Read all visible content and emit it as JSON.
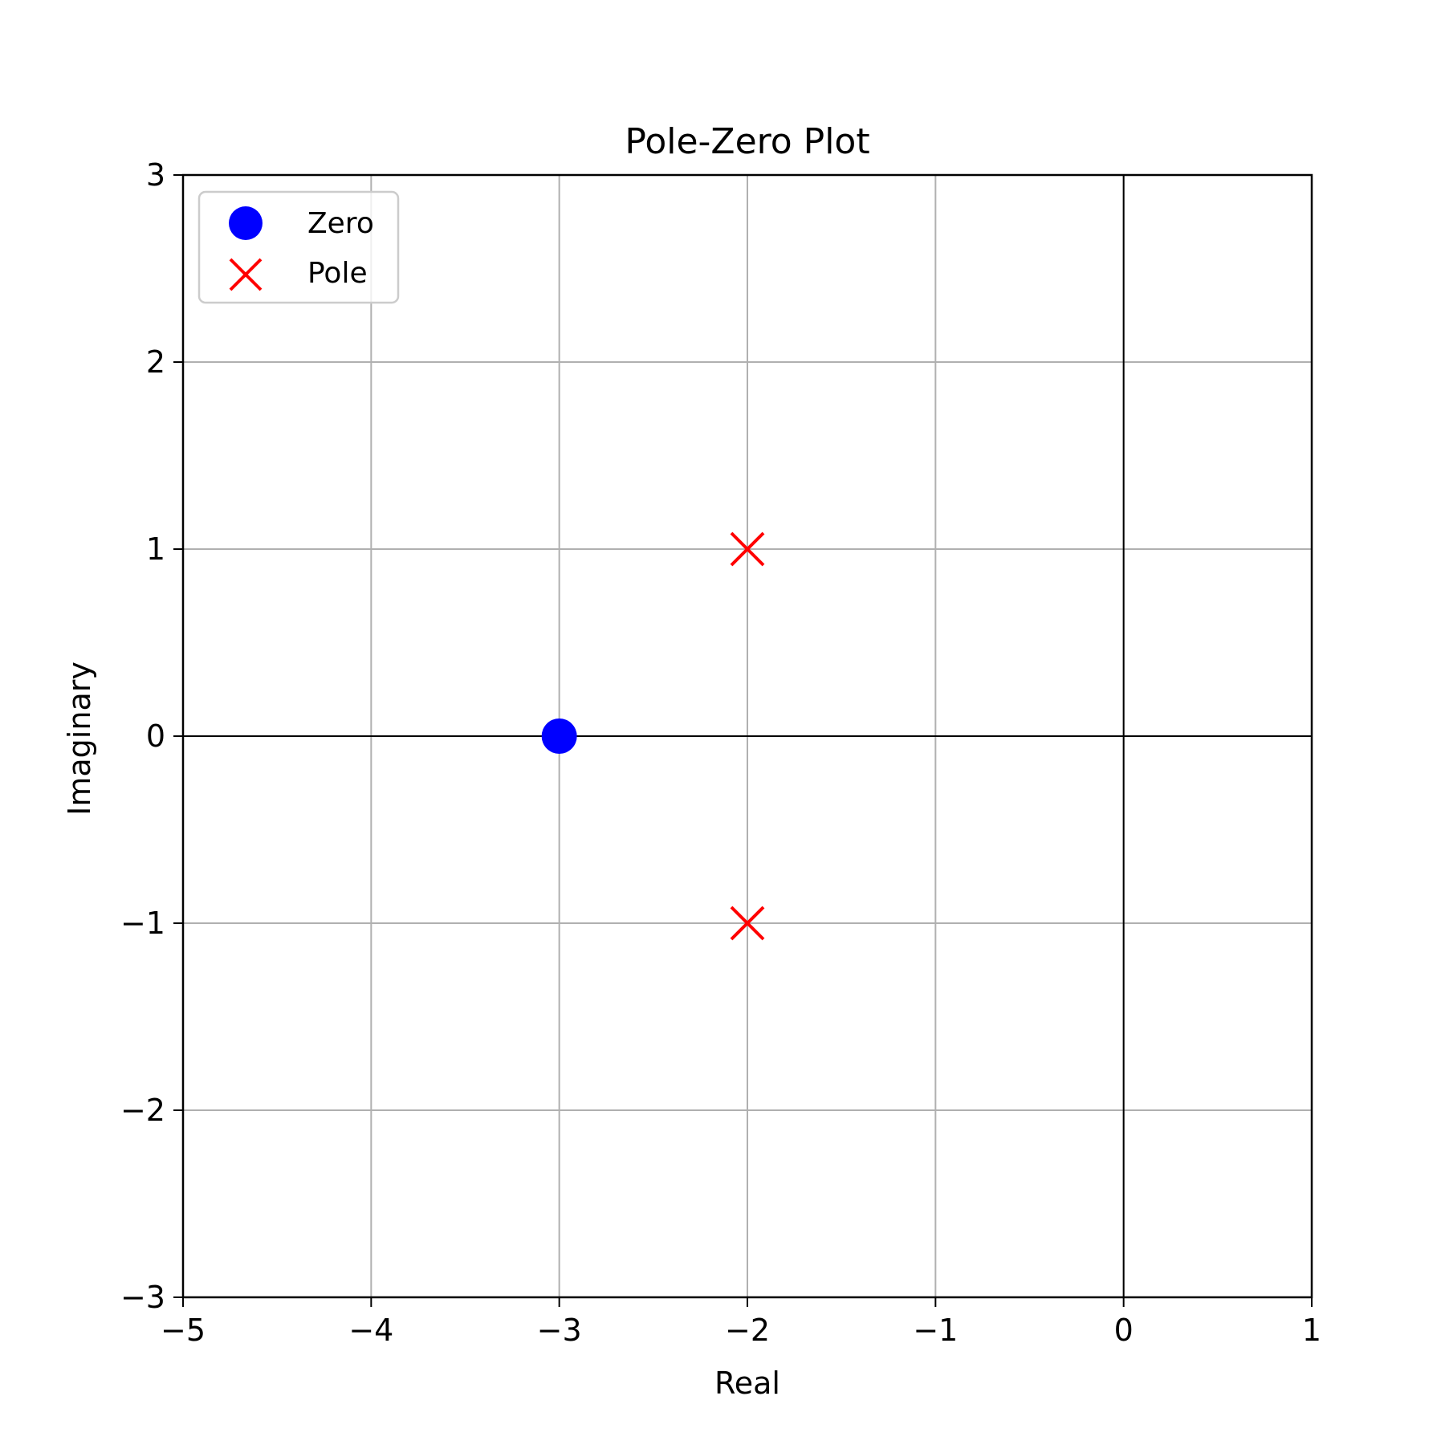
{
  "chart_data": {
    "type": "scatter",
    "title": "Pole-Zero Plot",
    "xlabel": "Real",
    "ylabel": "Imaginary",
    "xlim": [
      -5,
      1
    ],
    "ylim": [
      -3,
      3
    ],
    "xticks": [
      "−5",
      "−4",
      "−3",
      "−2",
      "−1",
      "0",
      "1"
    ],
    "yticks": [
      "−3",
      "−2",
      "−1",
      "0",
      "1",
      "2",
      "3"
    ],
    "grid": true,
    "legend_position": "top-left",
    "series": [
      {
        "name": "Zero",
        "marker": "circle",
        "color": "#0000ff",
        "points": [
          {
            "x": -3,
            "y": 0
          }
        ]
      },
      {
        "name": "Pole",
        "marker": "x",
        "color": "#ff0000",
        "points": [
          {
            "x": -2,
            "y": 1
          },
          {
            "x": -2,
            "y": -1
          }
        ]
      }
    ]
  }
}
